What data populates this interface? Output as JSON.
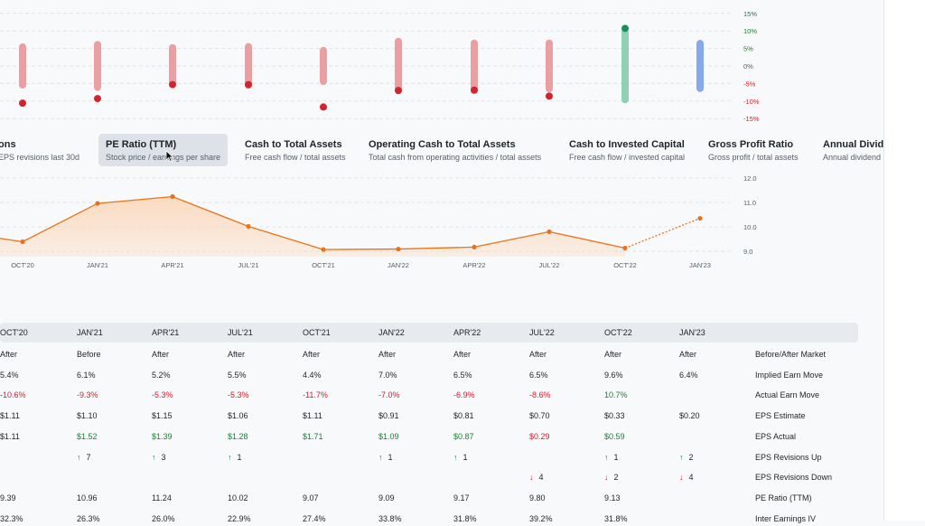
{
  "top_chart": {
    "y_ticks": [
      "15%",
      "10%",
      "5%",
      "0%",
      "-5%",
      "-10%",
      "-15%"
    ],
    "y_tick_values": [
      15,
      10,
      5,
      0,
      -5,
      -10,
      -15
    ],
    "columns": [
      {
        "implied": 5.4,
        "actual": -10.6
      },
      {
        "implied": 6.1,
        "actual": -9.3
      },
      {
        "implied": 5.2,
        "actual": -5.3
      },
      {
        "implied": 5.5,
        "actual": -5.3
      },
      {
        "implied": 4.4,
        "actual": -11.7
      },
      {
        "implied": 7.0,
        "actual": -7.0
      },
      {
        "implied": 6.5,
        "actual": -6.9
      },
      {
        "implied": 6.5,
        "actual": -8.6
      },
      {
        "implied": 9.6,
        "actual": 10.7
      },
      {
        "implied": 6.4,
        "actual": null
      }
    ],
    "colors": {
      "bar_red": "#eaa0a2",
      "bar_green": "#8fd1b5",
      "bar_blue": "#86a8ec",
      "dot_red": "#d1242f",
      "dot_green": "#1a8f5c",
      "tick_green": "#1a7f37",
      "tick_red": "#cf222e"
    }
  },
  "metric_tabs": [
    {
      "title": "ons",
      "subtitle": "EPS revisions last 30d",
      "active": false
    },
    {
      "title": "PE Ratio (TTM)",
      "subtitle": "Stock price / earnings per share",
      "active": true
    },
    {
      "title": "Cash to Total Assets",
      "subtitle": "Free cash flow / total assets",
      "active": false
    },
    {
      "title": "Operating Cash to Total Assets",
      "subtitle": "Total cash from operating activities / total assets",
      "active": false
    },
    {
      "title": "Cash to Invested Capital",
      "subtitle": "Free cash flow / invested capital",
      "active": false
    },
    {
      "title": "Gross Profit Ratio",
      "subtitle": "Gross profit / total assets",
      "active": false
    },
    {
      "title": "Annual Divide",
      "subtitle": "Annual dividend",
      "active": false
    }
  ],
  "chart_data": {
    "type": "area",
    "title": "PE Ratio (TTM)",
    "categories": [
      "OCT'20",
      "JAN'21",
      "APR'21",
      "JUL'21",
      "OCT'21",
      "JAN'22",
      "APR'22",
      "JUL'22",
      "OCT'22",
      "JAN'23"
    ],
    "series": [
      {
        "name": "PE Ratio (TTM)",
        "values": [
          9.39,
          10.96,
          11.24,
          10.02,
          9.07,
          9.09,
          9.17,
          9.8,
          9.13,
          10.35
        ]
      }
    ],
    "projected_last_point": true,
    "y_ticks": [
      "12.0",
      "11.0",
      "10.0",
      "9.0"
    ],
    "y_tick_values": [
      12.0,
      11.0,
      10.0,
      9.0
    ],
    "ylim": [
      9.0,
      12.0
    ],
    "line_color": "#e8731a",
    "fill_color": "#fbd9bd"
  },
  "table": {
    "headers": [
      "OCT'20",
      "JAN'21",
      "APR'21",
      "JUL'21",
      "OCT'21",
      "JAN'22",
      "APR'22",
      "JUL'22",
      "OCT'22",
      "JAN'23"
    ],
    "rows": [
      {
        "label": "Before/After Market",
        "cells": [
          {
            "v": "After",
            "c": ""
          },
          {
            "v": "Before",
            "c": ""
          },
          {
            "v": "After",
            "c": ""
          },
          {
            "v": "After",
            "c": ""
          },
          {
            "v": "After",
            "c": ""
          },
          {
            "v": "After",
            "c": ""
          },
          {
            "v": "After",
            "c": ""
          },
          {
            "v": "After",
            "c": ""
          },
          {
            "v": "After",
            "c": ""
          },
          {
            "v": "After",
            "c": ""
          }
        ]
      },
      {
        "label": "Implied Earn Move",
        "cells": [
          {
            "v": "5.4%",
            "c": ""
          },
          {
            "v": "6.1%",
            "c": ""
          },
          {
            "v": "5.2%",
            "c": ""
          },
          {
            "v": "5.5%",
            "c": ""
          },
          {
            "v": "4.4%",
            "c": ""
          },
          {
            "v": "7.0%",
            "c": ""
          },
          {
            "v": "6.5%",
            "c": ""
          },
          {
            "v": "6.5%",
            "c": ""
          },
          {
            "v": "9.6%",
            "c": ""
          },
          {
            "v": "6.4%",
            "c": ""
          }
        ]
      },
      {
        "label": "Actual Earn Move",
        "cells": [
          {
            "v": "-10.6%",
            "c": "red"
          },
          {
            "v": "-9.3%",
            "c": "red"
          },
          {
            "v": "-5.3%",
            "c": "red"
          },
          {
            "v": "-5.3%",
            "c": "red"
          },
          {
            "v": "-11.7%",
            "c": "red"
          },
          {
            "v": "-7.0%",
            "c": "red"
          },
          {
            "v": "-6.9%",
            "c": "red"
          },
          {
            "v": "-8.6%",
            "c": "red"
          },
          {
            "v": "10.7%",
            "c": "green"
          },
          {
            "v": "",
            "c": ""
          }
        ]
      },
      {
        "label": "EPS Estimate",
        "cells": [
          {
            "v": "$1.11",
            "c": ""
          },
          {
            "v": "$1.10",
            "c": ""
          },
          {
            "v": "$1.15",
            "c": ""
          },
          {
            "v": "$1.06",
            "c": ""
          },
          {
            "v": "$1.11",
            "c": ""
          },
          {
            "v": "$0.91",
            "c": ""
          },
          {
            "v": "$0.81",
            "c": ""
          },
          {
            "v": "$0.70",
            "c": ""
          },
          {
            "v": "$0.33",
            "c": ""
          },
          {
            "v": "$0.20",
            "c": ""
          }
        ]
      },
      {
        "label": "EPS Actual",
        "cells": [
          {
            "v": "$1.11",
            "c": ""
          },
          {
            "v": "$1.52",
            "c": "green"
          },
          {
            "v": "$1.39",
            "c": "green"
          },
          {
            "v": "$1.28",
            "c": "green"
          },
          {
            "v": "$1.71",
            "c": "green"
          },
          {
            "v": "$1.09",
            "c": "green"
          },
          {
            "v": "$0.87",
            "c": "green"
          },
          {
            "v": "$0.29",
            "c": "red"
          },
          {
            "v": "$0.59",
            "c": "green"
          },
          {
            "v": "",
            "c": ""
          }
        ]
      },
      {
        "label": "EPS Revisions Up",
        "cells": [
          {
            "v": "",
            "c": ""
          },
          {
            "v": "7",
            "c": "up"
          },
          {
            "v": "3",
            "c": "up"
          },
          {
            "v": "1",
            "c": "up"
          },
          {
            "v": "",
            "c": ""
          },
          {
            "v": "1",
            "c": "up"
          },
          {
            "v": "1",
            "c": "up"
          },
          {
            "v": "",
            "c": ""
          },
          {
            "v": "1",
            "c": "up"
          },
          {
            "v": "2",
            "c": "up"
          }
        ]
      },
      {
        "label": "EPS Revisions Down",
        "cells": [
          {
            "v": "",
            "c": ""
          },
          {
            "v": "",
            "c": ""
          },
          {
            "v": "",
            "c": ""
          },
          {
            "v": "",
            "c": ""
          },
          {
            "v": "",
            "c": ""
          },
          {
            "v": "",
            "c": ""
          },
          {
            "v": "",
            "c": ""
          },
          {
            "v": "4",
            "c": "down"
          },
          {
            "v": "2",
            "c": "down"
          },
          {
            "v": "4",
            "c": "down"
          }
        ]
      },
      {
        "label": "PE Ratio (TTM)",
        "cells": [
          {
            "v": "9.39",
            "c": ""
          },
          {
            "v": "10.96",
            "c": ""
          },
          {
            "v": "11.24",
            "c": ""
          },
          {
            "v": "10.02",
            "c": ""
          },
          {
            "v": "9.07",
            "c": ""
          },
          {
            "v": "9.09",
            "c": ""
          },
          {
            "v": "9.17",
            "c": ""
          },
          {
            "v": "9.80",
            "c": ""
          },
          {
            "v": "9.13",
            "c": ""
          },
          {
            "v": "",
            "c": ""
          }
        ]
      },
      {
        "label": "Inter Earnings IV",
        "cells": [
          {
            "v": "32.3%",
            "c": ""
          },
          {
            "v": "26.3%",
            "c": ""
          },
          {
            "v": "26.0%",
            "c": ""
          },
          {
            "v": "22.9%",
            "c": ""
          },
          {
            "v": "27.4%",
            "c": ""
          },
          {
            "v": "33.8%",
            "c": ""
          },
          {
            "v": "31.8%",
            "c": ""
          },
          {
            "v": "39.2%",
            "c": ""
          },
          {
            "v": "31.8%",
            "c": ""
          },
          {
            "v": "",
            "c": ""
          }
        ]
      }
    ],
    "arrows": {
      "up": "↑",
      "down": "↓"
    }
  }
}
